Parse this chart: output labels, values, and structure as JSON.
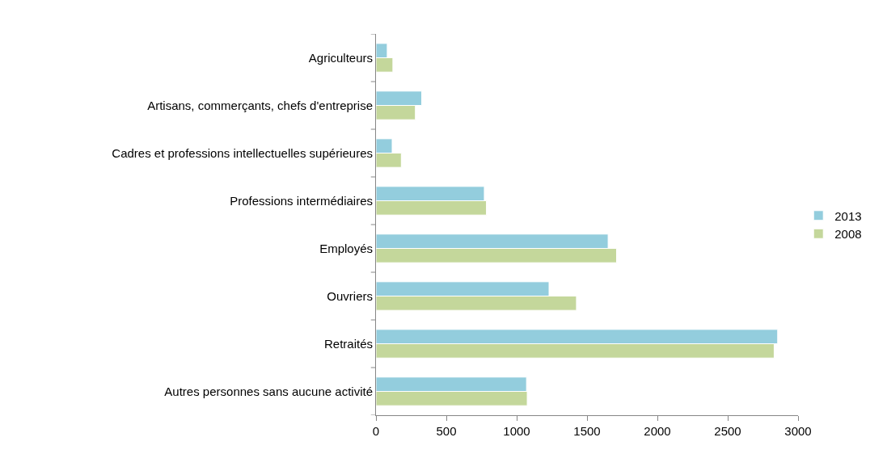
{
  "chart_data": {
    "type": "bar",
    "orientation": "horizontal",
    "categories": [
      "Agriculteurs",
      "Artisans, commerçants, chefs d'entreprise",
      "Cadres et professions intellectuelles supérieures",
      "Professions intermédiaires",
      "Employés",
      "Ouvriers",
      "Retraités",
      "Autres personnes sans aucune activité"
    ],
    "series": [
      {
        "name": "2013",
        "color": "#93cddd",
        "values": [
          80,
          325,
          115,
          770,
          1650,
          1230,
          2855,
          1070
        ]
      },
      {
        "name": "2008",
        "color": "#c4d79b",
        "values": [
          120,
          280,
          180,
          785,
          1710,
          1425,
          2830,
          1075
        ]
      }
    ],
    "xlim": [
      0,
      3000
    ],
    "xticks": [
      0,
      500,
      1000,
      1500,
      2000,
      2500,
      3000
    ],
    "grid": false,
    "legend": "right"
  }
}
